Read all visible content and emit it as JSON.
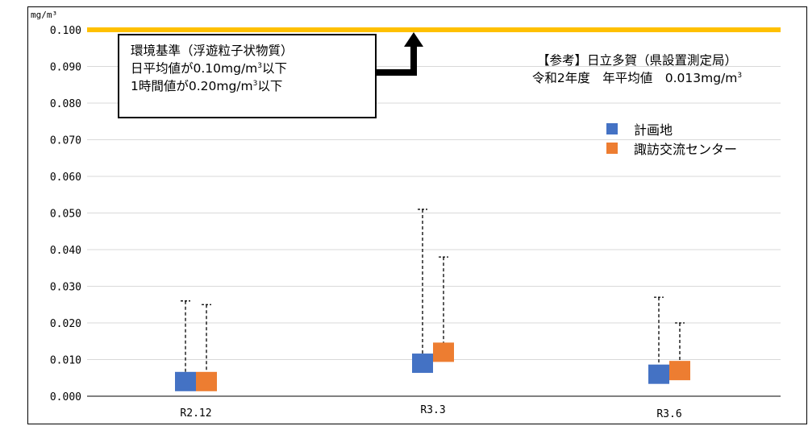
{
  "chart_data": {
    "type": "scatter",
    "unit": "mg/m³",
    "categories": [
      "R2.12",
      "R3.3",
      "R3.6"
    ],
    "y_ticks": [
      "0.000",
      "0.010",
      "0.020",
      "0.030",
      "0.040",
      "0.050",
      "0.060",
      "0.070",
      "0.080",
      "0.090",
      "0.100"
    ],
    "ylim": [
      0,
      0.1
    ],
    "grid": true,
    "series": [
      {
        "name": "計画地",
        "color": "#4472c4",
        "mean": [
          0.004,
          0.009,
          0.006
        ],
        "max": [
          0.026,
          0.051,
          0.027
        ]
      },
      {
        "name": "諏訪交流センター",
        "color": "#ed7d31",
        "mean": [
          0.004,
          0.012,
          0.007
        ],
        "max": [
          0.025,
          0.038,
          0.02
        ]
      }
    ],
    "standard_line": {
      "value": 0.1,
      "color": "#ffc000"
    },
    "legend_position": "upper-right"
  },
  "standard_box": {
    "line1": "環境基準（浮遊粒子状物質）",
    "line2_pre": "日平均値が0.10mg/m",
    "line2_sup": "3",
    "line2_post": "以下",
    "line3_pre": "1時間値が0.20mg/m",
    "line3_sup": "3",
    "line3_post": "以下"
  },
  "reference": {
    "line1": "【参考】日立多賀（県設置測定局）",
    "line2_pre": "令和2年度　年平均値　0.013mg/m",
    "line2_sup": "3"
  }
}
